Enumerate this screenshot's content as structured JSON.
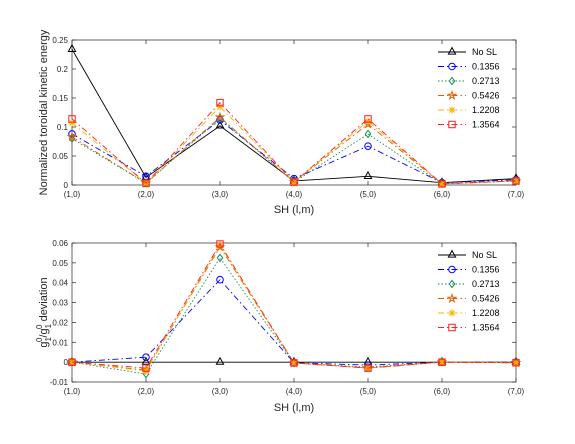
{
  "chart_data": [
    {
      "type": "line",
      "categories": [
        "(1,0)",
        "(2,0)",
        "(3,0)",
        "(4,0)",
        "(5,0)",
        "(6,0)",
        "(7,0)"
      ],
      "xlabel": "SH (l,m)",
      "ylabel": "Normalized toroidal kinetic energy",
      "ylim": [
        0,
        0.25
      ],
      "yticks": [
        "0",
        "0.05",
        "0.1",
        "0.15",
        "0.2",
        "0.25"
      ],
      "grid": false,
      "legend_position": "top-right",
      "series": [
        {
          "name": "No SL",
          "color": "#000000",
          "marker": "triangle",
          "dash": "solid",
          "values": [
            0.234,
            0.013,
            0.102,
            0.007,
            0.015,
            0.004,
            0.011
          ]
        },
        {
          "name": "0.1356",
          "color": "#0000ff",
          "marker": "circle",
          "dash": "dashdot",
          "values": [
            0.088,
            0.015,
            0.112,
            0.011,
            0.067,
            0.004,
            0.009
          ]
        },
        {
          "name": "0.2713",
          "color": "#1a8a5a",
          "marker": "diamond",
          "dash": "dotted",
          "values": [
            0.08,
            0.003,
            0.115,
            0.005,
            0.088,
            0.002,
            0.007
          ]
        },
        {
          "name": "0.5426",
          "color": "#e06000",
          "marker": "star",
          "dash": "dashdot",
          "values": [
            0.083,
            0.003,
            0.117,
            0.005,
            0.105,
            0.002,
            0.007
          ]
        },
        {
          "name": "1.2208",
          "color": "#f4b400",
          "marker": "asterisk",
          "dash": "dashdot",
          "values": [
            0.107,
            0.003,
            0.135,
            0.005,
            0.11,
            0.002,
            0.007
          ]
        },
        {
          "name": "1.3564",
          "color": "#ff2020",
          "marker": "square",
          "dash": "dashdot",
          "values": [
            0.114,
            0.003,
            0.142,
            0.005,
            0.114,
            0.002,
            0.007
          ]
        }
      ]
    },
    {
      "type": "line",
      "categories": [
        "(1,0)",
        "(2,0)",
        "(3,0)",
        "(4,0)",
        "(5,0)",
        "(6,0)",
        "(7,0)"
      ],
      "xlabel": "SH (l,m)",
      "ylabel": "g10/g10 deviation",
      "ylim": [
        -0.01,
        0.06
      ],
      "yticks": [
        "-0.01",
        "0",
        "0.01",
        "0.02",
        "0.03",
        "0.04",
        "0.05",
        "0.06"
      ],
      "grid": false,
      "legend_position": "top-right",
      "series": [
        {
          "name": "No SL",
          "color": "#000000",
          "marker": "triangle",
          "dash": "solid",
          "values": [
            0,
            0,
            0,
            0,
            0,
            0,
            0
          ]
        },
        {
          "name": "0.1356",
          "color": "#0000ff",
          "marker": "circle",
          "dash": "dashdot",
          "values": [
            0,
            0.0025,
            0.0415,
            -0.0003,
            -0.0015,
            0,
            0
          ]
        },
        {
          "name": "0.2713",
          "color": "#1a8a5a",
          "marker": "diamond",
          "dash": "dotted",
          "values": [
            0,
            -0.006,
            0.0525,
            -0.0005,
            -0.0025,
            0,
            -0.0003
          ]
        },
        {
          "name": "0.5426",
          "color": "#e06000",
          "marker": "star",
          "dash": "dashdot",
          "values": [
            0,
            -0.004,
            0.058,
            -0.0004,
            -0.003,
            0,
            -0.0003
          ]
        },
        {
          "name": "1.2208",
          "color": "#f4b400",
          "marker": "asterisk",
          "dash": "dashdot",
          "values": [
            0,
            -0.0045,
            0.059,
            -0.0004,
            -0.003,
            0,
            -0.0003
          ]
        },
        {
          "name": "1.3564",
          "color": "#ff2020",
          "marker": "square",
          "dash": "dashdot",
          "values": [
            0,
            -0.003,
            0.0595,
            -0.0004,
            -0.003,
            0,
            -0.0003
          ]
        }
      ]
    }
  ]
}
